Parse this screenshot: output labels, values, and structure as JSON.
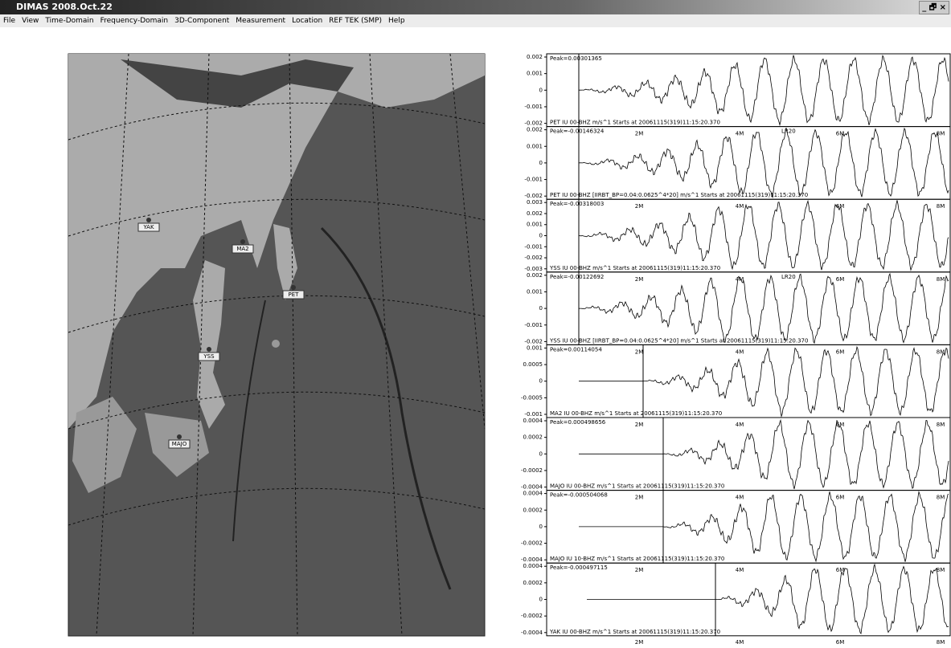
{
  "window": {
    "title": "DIMAS 2008.Oct.22",
    "buttons": "_ 🗗 ×"
  },
  "menu": [
    "File",
    "View",
    "Time-Domain",
    "Frequency-Domain",
    "3D-Component",
    "Measurement",
    "Location",
    "REF TEK (SMP)",
    "Help"
  ],
  "map": {
    "stations": [
      "YAK",
      "MA2",
      "PET",
      "YSS",
      "MAJO"
    ]
  },
  "time_labels": [
    "2M",
    "4M",
    "6M",
    "8M"
  ],
  "traces": [
    {
      "peak": "Peak=0.00301365",
      "yticks": [
        "0.002",
        "0.001",
        "0",
        "-0.001",
        "-0.002"
      ],
      "caption": "PET IU 00-BHZ  m/s^1 Starts at 20061115(319)11:15:20.370"
    },
    {
      "peak": "Peak=-0.00146324",
      "yticks": [
        "0.002",
        "0.001",
        "0",
        "-0.001",
        "-0.002"
      ],
      "caption": "PET IU 00-BHZ  [IIRBT_BP=0.04:0.0625^4*20] m/s^1 Starts at 20061115(319)11:15:20.370",
      "marker": "LR20"
    },
    {
      "peak": "Peak=-0.00318003",
      "yticks": [
        "0.003",
        "0.002",
        "0.001",
        "0",
        "-0.001",
        "-0.002",
        "-0.003"
      ],
      "caption": "YSS IU 00-BHZ  m/s^1 Starts at 20061115(319)11:15:20.370"
    },
    {
      "peak": "Peak=-0.00122692",
      "yticks": [
        "0.002",
        "0.001",
        "0",
        "-0.001",
        "-0.002"
      ],
      "caption": "YSS IU 00-BHZ  [IIRBT_BP=0.04:0.0625^4*20] m/s^1 Starts at 20061115(319)11:15:20.370",
      "marker": "LR20"
    },
    {
      "peak": "Peak=0.00114054",
      "yticks": [
        "0.001",
        "0.0005",
        "0",
        "-0.0005",
        "-0.001"
      ],
      "caption": "MA2 IU 00-BHZ  m/s^1 Starts at 20061115(319)11:15:20.370"
    },
    {
      "peak": "Peak=0.000498656",
      "yticks": [
        "0.0004",
        "0.0002",
        "0",
        "-0.0002",
        "-0.0004"
      ],
      "caption": "MAJO IU 00-BHZ  m/s^1 Starts at 20061115(319)11:15:20.370"
    },
    {
      "peak": "Peak=-0.000504068",
      "yticks": [
        "0.0004",
        "0.0002",
        "0",
        "-0.0002",
        "-0.0004"
      ],
      "caption": "MAJO IU 10-BHZ  m/s^1 Starts at 20061115(319)11:15:20.370"
    },
    {
      "peak": "Peak=-0.000497115",
      "yticks": [
        "0.0004",
        "0.0002",
        "0",
        "-0.0002",
        "-0.0004"
      ],
      "caption": "YAK IU 00-BHZ  m/s^1 Starts at 20061115(319)11:15:20.370"
    }
  ]
}
